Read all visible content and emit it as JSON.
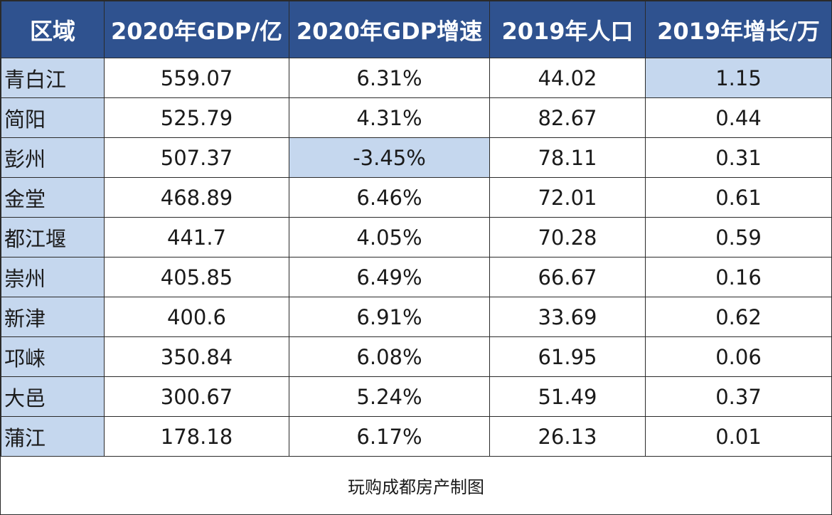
{
  "table": {
    "columns": [
      "区域",
      "2020年GDP/亿",
      "2020年GDP增速",
      "2019年人口",
      "2019年增长/万"
    ],
    "rows": [
      {
        "region": "青白江",
        "gdp": "559.07",
        "growth": "6.31%",
        "pop": "44.02",
        "pop_growth": "1.15"
      },
      {
        "region": "简阳",
        "gdp": "525.79",
        "growth": "4.31%",
        "pop": "82.67",
        "pop_growth": "0.44"
      },
      {
        "region": "彭州",
        "gdp": "507.37",
        "growth": "-3.45%",
        "pop": "78.11",
        "pop_growth": "0.31"
      },
      {
        "region": "金堂",
        "gdp": "468.89",
        "growth": "6.46%",
        "pop": "72.01",
        "pop_growth": "0.61"
      },
      {
        "region": "都江堰",
        "gdp": "441.7",
        "growth": "4.05%",
        "pop": "70.28",
        "pop_growth": "0.59"
      },
      {
        "region": "崇州",
        "gdp": "405.85",
        "growth": "6.49%",
        "pop": "66.67",
        "pop_growth": "0.16"
      },
      {
        "region": "新津",
        "gdp": "400.6",
        "growth": "6.91%",
        "pop": "33.69",
        "pop_growth": "0.62"
      },
      {
        "region": "邛崃",
        "gdp": "350.84",
        "growth": "6.08%",
        "pop": "61.95",
        "pop_growth": "0.06"
      },
      {
        "region": "大邑",
        "gdp": "300.67",
        "growth": "5.24%",
        "pop": "51.49",
        "pop_growth": "0.37"
      },
      {
        "region": "蒲江",
        "gdp": "178.18",
        "growth": "6.17%",
        "pop": "26.13",
        "pop_growth": "0.01"
      }
    ]
  },
  "footer": {
    "credit": "玩购成都房产制图"
  },
  "colors": {
    "header_bg": "#2f528f",
    "highlight": "#c5d7ee"
  }
}
